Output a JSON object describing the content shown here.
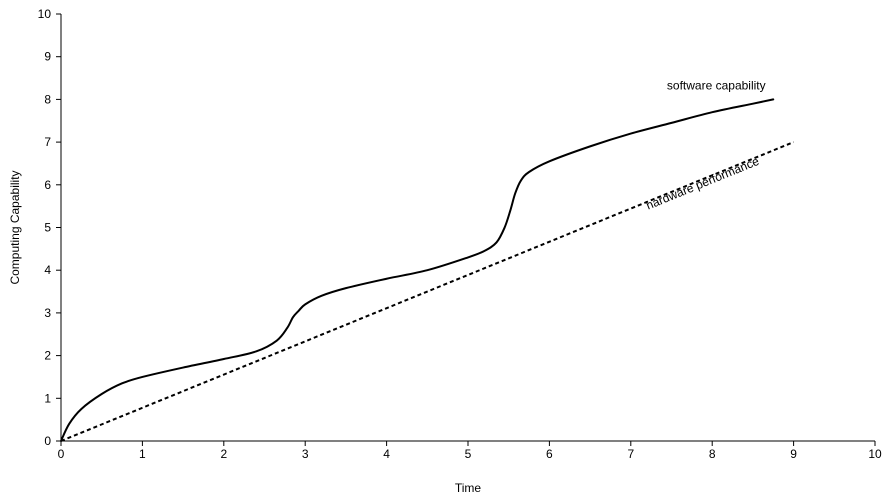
{
  "chart_data": {
    "type": "line",
    "title": "",
    "xlabel": "Time",
    "ylabel": "Computing Capability",
    "xlim": [
      0,
      10
    ],
    "ylim": [
      0,
      10
    ],
    "x_ticks": [
      "0",
      "1",
      "2",
      "3",
      "4",
      "5",
      "6",
      "7",
      "8",
      "9",
      "10"
    ],
    "y_ticks": [
      "0",
      "1",
      "2",
      "3",
      "4",
      "5",
      "6",
      "7",
      "8",
      "9",
      "10"
    ],
    "grid": false,
    "legend": "none",
    "series": [
      {
        "name": "software capability",
        "style": "solid",
        "color": "#000000",
        "x": [
          0,
          0.1,
          0.25,
          0.5,
          0.75,
          1.0,
          1.5,
          2.0,
          2.4,
          2.65,
          2.78,
          2.85,
          2.92,
          3.0,
          3.2,
          3.5,
          4.0,
          4.5,
          5.0,
          5.2,
          5.35,
          5.45,
          5.52,
          5.58,
          5.65,
          5.75,
          6.0,
          6.5,
          7.0,
          7.5,
          8.0,
          8.5,
          8.75
        ],
        "y": [
          0,
          0.4,
          0.75,
          1.1,
          1.35,
          1.5,
          1.72,
          1.92,
          2.1,
          2.35,
          2.65,
          2.9,
          3.05,
          3.2,
          3.4,
          3.58,
          3.8,
          4.0,
          4.3,
          4.45,
          4.65,
          5.0,
          5.4,
          5.8,
          6.1,
          6.3,
          6.55,
          6.9,
          7.2,
          7.45,
          7.7,
          7.9,
          8.0
        ],
        "label_text": "software capability"
      },
      {
        "name": "hardware performance",
        "style": "dashed",
        "color": "#000000",
        "x": [
          0,
          9
        ],
        "y": [
          0,
          7
        ],
        "label_text": "hardware performance"
      }
    ]
  }
}
